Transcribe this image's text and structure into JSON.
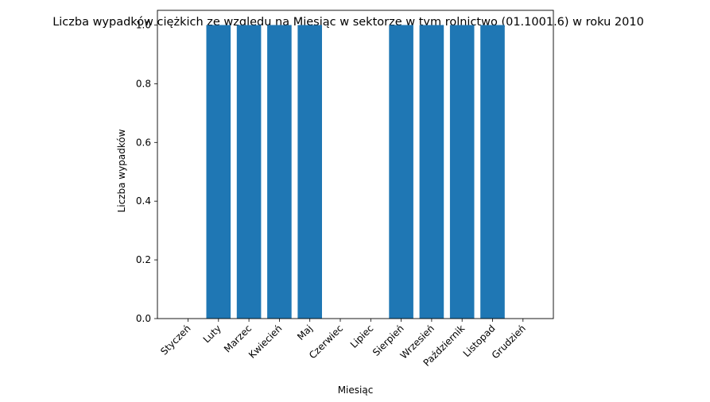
{
  "chart_data": {
    "type": "bar",
    "title": "Liczba wypadków ciężkich ze względu na Miesiąc w sektorze    w tym rolnictwo (01.1001.6) w roku 2010",
    "xlabel": "Miesiąc",
    "ylabel": "Liczba wypadków",
    "categories": [
      "Styczeń",
      "Luty",
      "Marzec",
      "Kwiecień",
      "Maj",
      "Czerwiec",
      "Lipiec",
      "Sierpień",
      "Wrzesień",
      "Październik",
      "Listopad",
      "Grudzień"
    ],
    "values": [
      0,
      1,
      1,
      1,
      1,
      0,
      0,
      1,
      1,
      1,
      1,
      0
    ],
    "ylim": [
      0,
      1.05
    ],
    "yticks": [
      "0.0",
      "0.2",
      "0.4",
      "0.6",
      "0.8",
      "1.0"
    ],
    "bar_color": "#1f77b4",
    "grid": false,
    "legend": "none"
  }
}
